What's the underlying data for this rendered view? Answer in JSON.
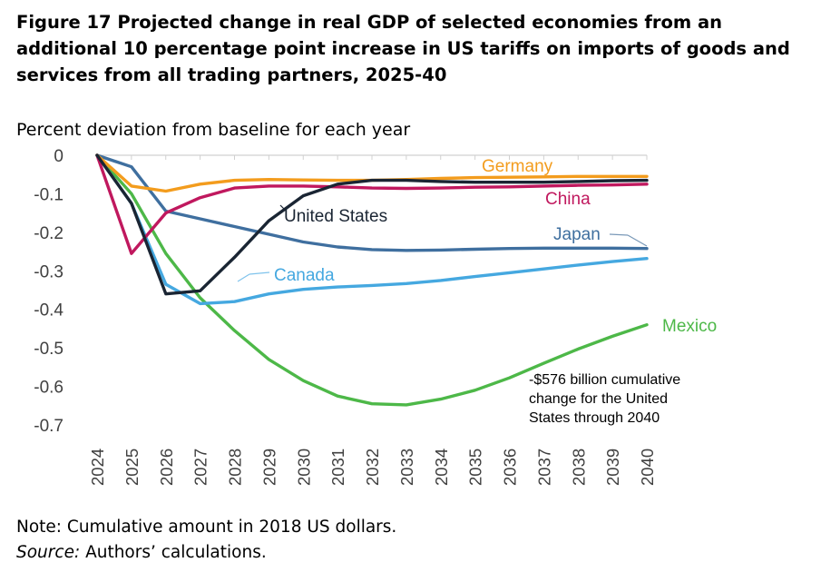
{
  "figure": {
    "title": "Figure 17 Projected change in real GDP of selected economies from an additional 10 percentage point increase in US tariffs on imports of goods and services from all trading partners, 2025-40",
    "note": "Note: Cumulative amount in 2018 US dollars.",
    "source_label": "Source:",
    "source_text": " Authors’ calculations."
  },
  "chart_data": {
    "type": "line",
    "ylabel": "Percent deviation from baseline for each year",
    "ylim": [
      -0.7,
      0
    ],
    "yticks": [
      0,
      -0.1,
      -0.2,
      -0.3,
      -0.4,
      -0.5,
      -0.6,
      -0.7
    ],
    "ytick_labels": [
      "0",
      "-0.1",
      "-0.2",
      "-0.3",
      "-0.4",
      "-0.5",
      "-0.6",
      "-0.7"
    ],
    "x": [
      "2024",
      "2025",
      "2026",
      "2027",
      "2028",
      "2029",
      "2030",
      "2031",
      "2032",
      "2033",
      "2034",
      "2035",
      "2036",
      "2037",
      "2038",
      "2039",
      "2040"
    ],
    "grid": false,
    "series": [
      {
        "name": "Germany",
        "color": "#F39C1D",
        "values": [
          0,
          -0.08,
          -0.093,
          -0.075,
          -0.065,
          -0.063,
          -0.064,
          -0.065,
          -0.065,
          -0.063,
          -0.06,
          -0.058,
          -0.057,
          -0.056,
          -0.055,
          -0.055,
          -0.055
        ]
      },
      {
        "name": "China",
        "color": "#C0185E",
        "values": [
          0,
          -0.255,
          -0.15,
          -0.11,
          -0.085,
          -0.08,
          -0.08,
          -0.082,
          -0.085,
          -0.086,
          -0.085,
          -0.083,
          -0.082,
          -0.08,
          -0.078,
          -0.077,
          -0.075
        ]
      },
      {
        "name": "United States",
        "color": "#1A2533",
        "values": [
          0,
          -0.125,
          -0.36,
          -0.352,
          -0.265,
          -0.17,
          -0.105,
          -0.075,
          -0.065,
          -0.065,
          -0.068,
          -0.07,
          -0.07,
          -0.07,
          -0.068,
          -0.066,
          -0.065
        ]
      },
      {
        "name": "Japan",
        "color": "#3F6F9F",
        "values": [
          0,
          -0.03,
          -0.145,
          -0.165,
          -0.185,
          -0.205,
          -0.225,
          -0.238,
          -0.245,
          -0.247,
          -0.246,
          -0.244,
          -0.242,
          -0.241,
          -0.241,
          -0.241,
          -0.242
        ]
      },
      {
        "name": "Canada",
        "color": "#45A8E0",
        "values": [
          0,
          -0.125,
          -0.335,
          -0.385,
          -0.38,
          -0.36,
          -0.348,
          -0.342,
          -0.338,
          -0.333,
          -0.325,
          -0.315,
          -0.305,
          -0.295,
          -0.285,
          -0.276,
          -0.268
        ]
      },
      {
        "name": "Mexico",
        "color": "#4DB848",
        "values": [
          0,
          -0.1,
          -0.255,
          -0.37,
          -0.455,
          -0.53,
          -0.585,
          -0.625,
          -0.645,
          -0.648,
          -0.633,
          -0.61,
          -0.578,
          -0.54,
          -0.503,
          -0.47,
          -0.44
        ]
      }
    ],
    "annotations": [
      {
        "line1": "-$576 billion cumulative",
        "line2": "change for the United",
        "line3": "States through 2040"
      }
    ]
  }
}
